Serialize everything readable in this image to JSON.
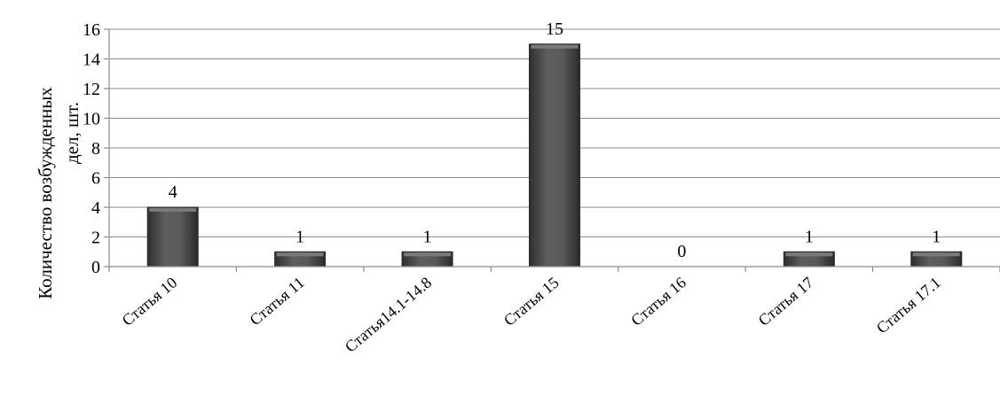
{
  "chart_data": {
    "type": "bar",
    "title": "",
    "xlabel": "",
    "ylabel_lines": [
      "Количество возбужденных",
      "дел, шт."
    ],
    "categories": [
      "Статья 10",
      "Статья 11",
      "Статья14.1-14.8",
      "Статья 15",
      "Статья 16",
      "Статья 17",
      "Статья 17.1"
    ],
    "values": [
      4,
      1,
      1,
      15,
      0,
      1,
      1
    ],
    "data_labels": [
      "4",
      "1",
      "1",
      "15",
      "0",
      "1",
      "1"
    ],
    "ylim": [
      0,
      16
    ],
    "yticks": [
      "0",
      "2",
      "4",
      "6",
      "8",
      "10",
      "12",
      "14",
      "16"
    ],
    "grid": true,
    "legend": false,
    "bar_color": "#4a4a4a"
  }
}
